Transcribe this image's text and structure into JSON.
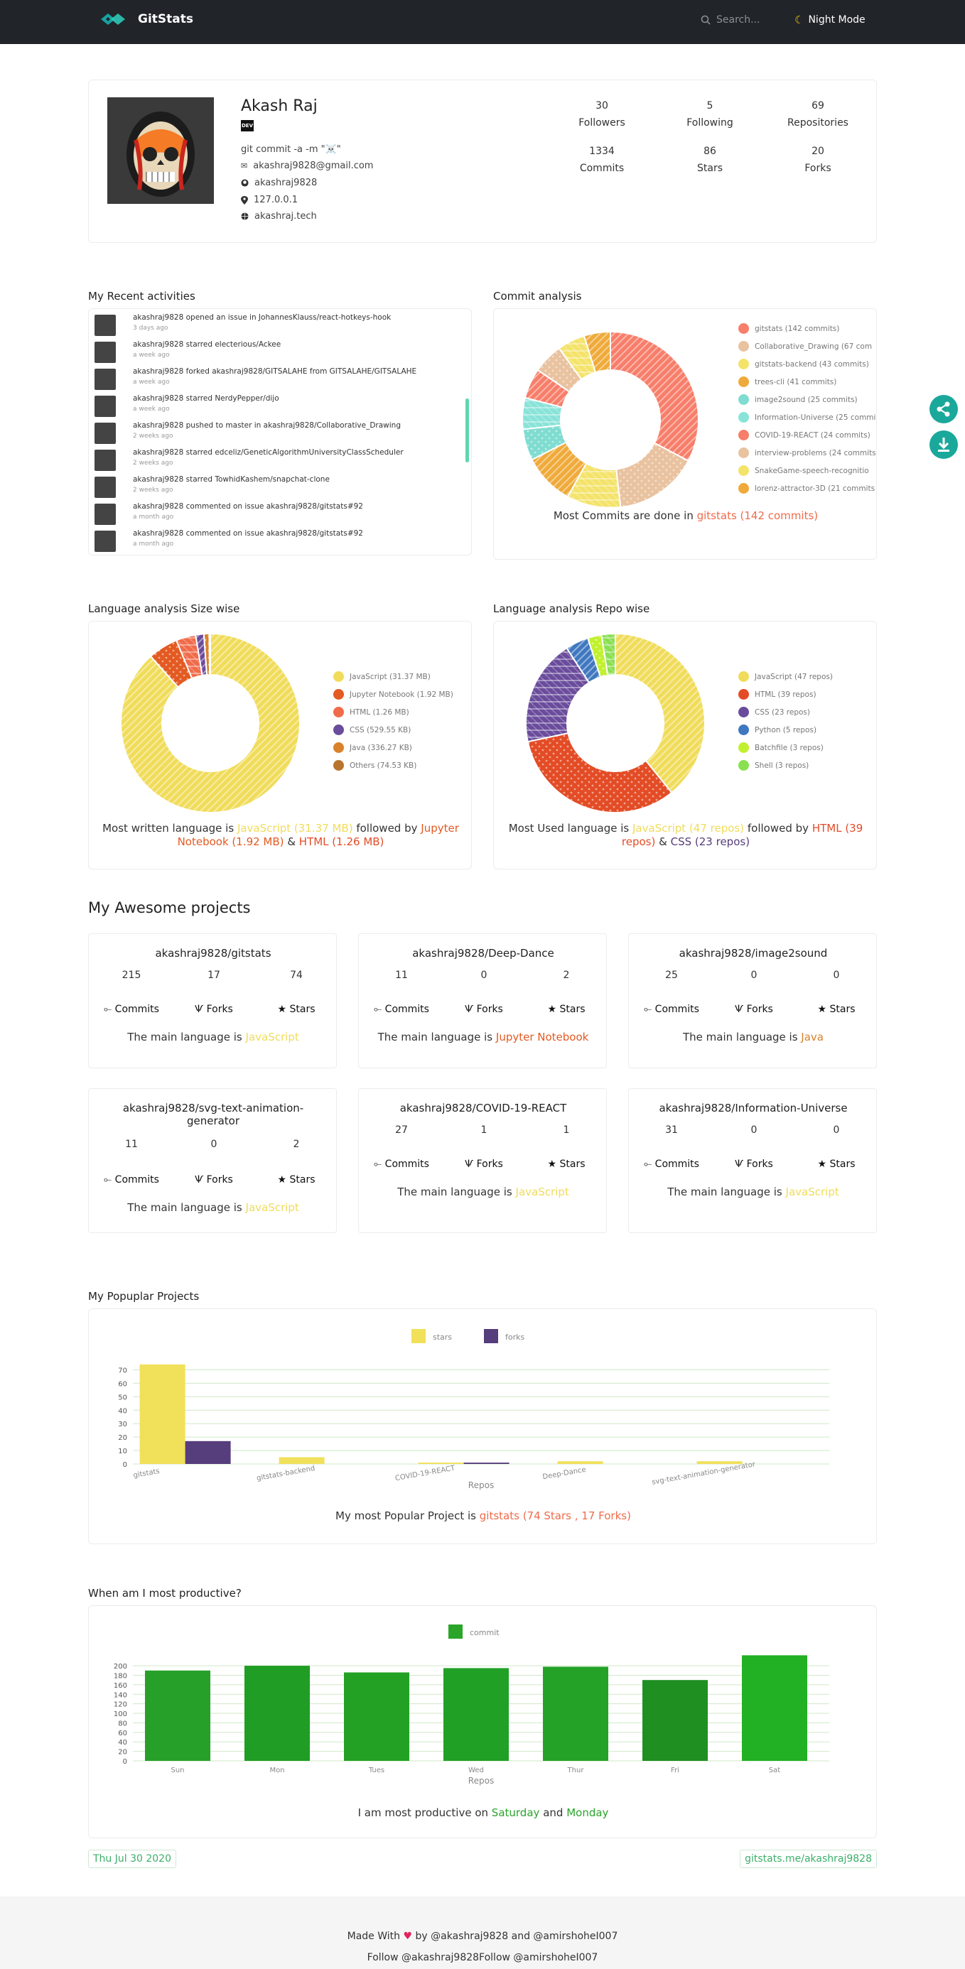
{
  "nav": {
    "brand": "GitStats",
    "search_placeholder": "Search...",
    "night_mode": "Night Mode"
  },
  "profile": {
    "name": "Akash Raj",
    "badge": "DEV",
    "bio": "git commit -a -m \"☠️\"",
    "email": "akashraj9828@gmail.com",
    "github": "akashraj9828",
    "location": "127.0.0.1",
    "website": "akashraj.tech",
    "stats": [
      {
        "value": "30",
        "label": "Followers"
      },
      {
        "value": "5",
        "label": "Following"
      },
      {
        "value": "69",
        "label": "Repositories"
      },
      {
        "value": "1334",
        "label": "Commits"
      },
      {
        "value": "86",
        "label": "Stars"
      },
      {
        "value": "20",
        "label": "Forks"
      }
    ]
  },
  "activities": {
    "title": "My Recent activities",
    "items": [
      {
        "text": "akashraj9828 opened an issue in JohannesKlauss/react-hotkeys-hook",
        "time": "3 days ago"
      },
      {
        "text": "akashraj9828 starred electerious/Ackee",
        "time": "a week ago"
      },
      {
        "text": "akashraj9828 forked akashraj9828/GITSALAHE from GITSALAHE/GITSALAHE",
        "time": "a week ago"
      },
      {
        "text": "akashraj9828 starred NerdyPepper/dijo",
        "time": "a week ago"
      },
      {
        "text": "akashraj9828 pushed to master in akashraj9828/Collaborative_Drawing",
        "time": "2 weeks ago"
      },
      {
        "text": "akashraj9828 starred edceliz/GeneticAlgorithmUniversityClassScheduler",
        "time": "2 weeks ago"
      },
      {
        "text": "akashraj9828 starred TowhidKashem/snapchat-clone",
        "time": "2 weeks ago"
      },
      {
        "text": "akashraj9828 commented on issue akashraj9828/gitstats#92",
        "time": "a month ago"
      },
      {
        "text": "akashraj9828 commented on issue akashraj9828/gitstats#92",
        "time": "a month ago"
      }
    ]
  },
  "commit_analysis": {
    "title": "Commit analysis",
    "legend": [
      "gitstats (142 commits)",
      "Collaborative_Drawing (67 com",
      "gitstats-backend (43 commits)",
      "trees-cli (41 commits)",
      "image2sound (25 commits)",
      "Information-Universe (25 commi",
      "COVID-19-REACT (24 commits)",
      "interview-problems (24 commits",
      "SnakeGame-speech-recognitio",
      "lorenz-attractor-3D (21 commits"
    ],
    "caption_prefix": "Most Commits are done in",
    "caption_highlight": "gitstats (142 commits)"
  },
  "lang_size": {
    "title": "Language analysis Size wise",
    "legend": [
      "JavaScript (31.37 MB)",
      "Jupyter Notebook (1.92 MB)",
      "HTML (1.26 MB)",
      "CSS (529.55 KB)",
      "Java (336.27 KB)",
      "Others (74.53 KB)"
    ],
    "caption_a": "Most written language is",
    "caption_b": "JavaScript (31.37 MB)",
    "caption_c": "followed by",
    "caption_d": "Jupyter Notebook (1.92 MB)",
    "caption_e": "&",
    "caption_f": "HTML (1.26 MB)"
  },
  "lang_repo": {
    "title": "Language analysis Repo wise",
    "legend": [
      "JavaScript (47 repos)",
      "HTML (39 repos)",
      "CSS (23 repos)",
      "Python (5 repos)",
      "Batchfile (3 repos)",
      "Shell (3 repos)"
    ],
    "caption_a": "Most Used language is",
    "caption_b": "JavaScript (47 repos)",
    "caption_c": "followed by",
    "caption_d": "HTML (39 repos)",
    "caption_e": "&",
    "caption_f": "CSS (23 repos)"
  },
  "projects": {
    "title": "My Awesome projects",
    "commits_label": "Commits",
    "forks_label": "Forks",
    "stars_label": "Stars",
    "lang_prefix": "The main language is",
    "items": [
      {
        "name": "akashraj9828/gitstats",
        "commits": "215",
        "forks": "17",
        "stars": "74",
        "lang": "JavaScript"
      },
      {
        "name": "akashraj9828/Deep-Dance",
        "commits": "11",
        "forks": "0",
        "stars": "2",
        "lang": "Jupyter Notebook"
      },
      {
        "name": "akashraj9828/image2sound",
        "commits": "25",
        "forks": "0",
        "stars": "0",
        "lang": "Java"
      },
      {
        "name": "akashraj9828/svg-text-animation-generator",
        "commits": "11",
        "forks": "0",
        "stars": "2",
        "lang": "JavaScript"
      },
      {
        "name": "akashraj9828/COVID-19-REACT",
        "commits": "27",
        "forks": "1",
        "stars": "1",
        "lang": "JavaScript"
      },
      {
        "name": "akashraj9828/Information-Universe",
        "commits": "31",
        "forks": "0",
        "stars": "0",
        "lang": "JavaScript"
      }
    ]
  },
  "popular": {
    "title": "My Popuplar Projects",
    "caption_prefix": "My most Popular Project is",
    "caption_highlight": "gitstats (74 Stars , 17 Forks)"
  },
  "productive": {
    "title": "When am I most productive?",
    "caption_a": "I am most productive on",
    "caption_b": "Saturday",
    "caption_c": "and",
    "caption_d": "Monday"
  },
  "footer": {
    "date": "Thu Jul 30 2020",
    "link": "gitstats.me/akashraj9828",
    "made_with": "Made With",
    "by": "by",
    "author1": "@akashraj9828",
    "and": "and",
    "author2": "@amirshoheI007",
    "follow": "Follow @akashraj9828Follow @amirshoheI007"
  },
  "colors": {
    "accent": "#1aa89b",
    "highlight": "#f06b4a",
    "js": "#f0e060",
    "green": "#2aa52a"
  },
  "chart_data": [
    {
      "type": "pie",
      "title": "Commit analysis",
      "categories": [
        "gitstats",
        "Collaborative_Drawing",
        "gitstats-backend",
        "trees-cli",
        "image2sound",
        "Information-Universe",
        "COVID-19-REACT",
        "interview-problems",
        "SnakeGame-speech-recognition",
        "lorenz-attractor-3D"
      ],
      "values": [
        142,
        67,
        43,
        41,
        25,
        25,
        24,
        24,
        22,
        21
      ]
    },
    {
      "type": "pie",
      "title": "Language analysis Size wise",
      "categories": [
        "JavaScript",
        "Jupyter Notebook",
        "HTML",
        "CSS",
        "Java",
        "Others"
      ],
      "values": [
        31.37,
        1.92,
        1.26,
        0.53,
        0.34,
        0.07
      ],
      "unit": "MB"
    },
    {
      "type": "pie",
      "title": "Language analysis Repo wise",
      "categories": [
        "JavaScript",
        "HTML",
        "CSS",
        "Python",
        "Batchfile",
        "Shell"
      ],
      "values": [
        47,
        39,
        23,
        5,
        3,
        3
      ]
    },
    {
      "type": "bar",
      "title": "My Popuplar Projects",
      "categories": [
        "gitstats",
        "gitstats-backend",
        "COVID-19-REACT",
        "Deep-Dance",
        "svg-text-animation-generator"
      ],
      "series": [
        {
          "name": "stars",
          "values": [
            74,
            5,
            1,
            2,
            2
          ]
        },
        {
          "name": "forks",
          "values": [
            17,
            0,
            1,
            0,
            0
          ]
        }
      ],
      "xlabel": "Repos",
      "ylabel": "",
      "ylim": [
        0,
        75
      ],
      "yticks": [
        0,
        10,
        20,
        30,
        40,
        50,
        60,
        70
      ]
    },
    {
      "type": "bar",
      "title": "When am I most productive?",
      "categories": [
        "Sun",
        "Mon",
        "Tues",
        "Wed",
        "Thur",
        "Fri",
        "Sat"
      ],
      "series": [
        {
          "name": "commit",
          "values": [
            190,
            200,
            186,
            195,
            198,
            170,
            222
          ]
        }
      ],
      "xlabel": "Repos",
      "ylabel": "",
      "ylim": [
        0,
        230
      ],
      "yticks": [
        0,
        20,
        40,
        60,
        80,
        100,
        120,
        140,
        160,
        180,
        200
      ]
    }
  ]
}
